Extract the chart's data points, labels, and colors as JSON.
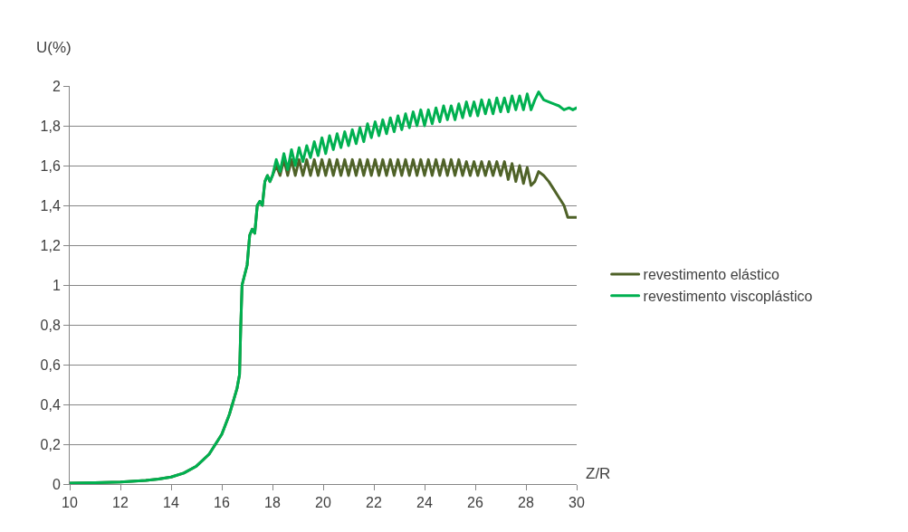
{
  "chart_data": {
    "type": "line",
    "xlabel": "Z/R",
    "ylabel": "U(%)",
    "xlim": [
      10,
      30
    ],
    "xticks": [
      10,
      12,
      14,
      16,
      18,
      20,
      22,
      24,
      26,
      28,
      30
    ],
    "ylim": [
      0,
      2
    ],
    "yticks": [
      0,
      {
        "value": 0.2,
        "label": "0,2"
      },
      {
        "value": 0.4,
        "label": "0,4"
      },
      {
        "value": 0.6,
        "label": "0,6"
      },
      {
        "value": 0.8,
        "label": "0,8"
      },
      1,
      {
        "value": 1.2,
        "label": "1,2"
      },
      {
        "value": 1.4,
        "label": "1,4"
      },
      {
        "value": 1.6,
        "label": "1,6"
      },
      {
        "value": 1.8,
        "label": "1,8"
      },
      2
    ],
    "grid": "y",
    "legend": "right",
    "marker": "none",
    "line_style": "solid",
    "series": [
      {
        "name": "revestimento elástico",
        "color": "#4f6228",
        "x": [
          10,
          11,
          12,
          13,
          13.5,
          14,
          14.5,
          15,
          15.5,
          16,
          16.3,
          16.6,
          16.7,
          16.75,
          16.8,
          17,
          17.1,
          17.2,
          17.3,
          17.4,
          17.5,
          17.6,
          17.7,
          17.8,
          17.9,
          18.0,
          18.15,
          18.3,
          18.45,
          18.6,
          18.75,
          18.9,
          19.05,
          19.2,
          19.35,
          19.5,
          19.65,
          19.8,
          19.95,
          20.1,
          20.25,
          20.4,
          20.55,
          20.7,
          20.85,
          21.0,
          21.15,
          21.3,
          21.45,
          21.6,
          21.75,
          21.9,
          22.05,
          22.2,
          22.35,
          22.5,
          22.65,
          22.8,
          22.95,
          23.1,
          23.25,
          23.4,
          23.55,
          23.7,
          23.85,
          24.0,
          24.15,
          24.3,
          24.45,
          24.6,
          24.75,
          24.9,
          25.05,
          25.2,
          25.35,
          25.5,
          25.65,
          25.8,
          25.95,
          26.1,
          26.25,
          26.4,
          26.55,
          26.7,
          26.85,
          27.0,
          27.15,
          27.3,
          27.45,
          27.6,
          27.75,
          27.9,
          28.05,
          28.2,
          28.35,
          28.5,
          28.7,
          28.9,
          29.1,
          29.3,
          29.5,
          29.65,
          30
        ],
        "values": [
          0.005,
          0.007,
          0.01,
          0.018,
          0.025,
          0.035,
          0.055,
          0.09,
          0.15,
          0.25,
          0.35,
          0.48,
          0.55,
          0.8,
          1.0,
          1.1,
          1.25,
          1.28,
          1.26,
          1.4,
          1.42,
          1.4,
          1.52,
          1.55,
          1.52,
          1.55,
          1.6,
          1.55,
          1.63,
          1.55,
          1.63,
          1.55,
          1.63,
          1.55,
          1.63,
          1.55,
          1.63,
          1.55,
          1.63,
          1.55,
          1.63,
          1.55,
          1.63,
          1.55,
          1.63,
          1.55,
          1.63,
          1.55,
          1.63,
          1.55,
          1.63,
          1.55,
          1.63,
          1.55,
          1.63,
          1.55,
          1.63,
          1.55,
          1.63,
          1.55,
          1.63,
          1.55,
          1.63,
          1.55,
          1.63,
          1.55,
          1.63,
          1.55,
          1.63,
          1.55,
          1.63,
          1.55,
          1.63,
          1.55,
          1.63,
          1.55,
          1.62,
          1.55,
          1.62,
          1.55,
          1.62,
          1.55,
          1.62,
          1.55,
          1.62,
          1.55,
          1.62,
          1.53,
          1.61,
          1.52,
          1.6,
          1.51,
          1.59,
          1.5,
          1.52,
          1.57,
          1.55,
          1.52,
          1.48,
          1.44,
          1.4,
          1.34,
          1.34
        ]
      },
      {
        "name": "revestimento viscoplástico",
        "color": "#00b050",
        "x": [
          10,
          11,
          12,
          13,
          13.5,
          14,
          14.5,
          15,
          15.5,
          16,
          16.3,
          16.6,
          16.7,
          16.75,
          16.8,
          17,
          17.1,
          17.2,
          17.3,
          17.4,
          17.5,
          17.6,
          17.7,
          17.8,
          17.9,
          18.0,
          18.15,
          18.3,
          18.45,
          18.6,
          18.75,
          18.9,
          19.05,
          19.2,
          19.35,
          19.5,
          19.65,
          19.8,
          19.95,
          20.1,
          20.25,
          20.4,
          20.55,
          20.7,
          20.85,
          21.0,
          21.15,
          21.3,
          21.45,
          21.6,
          21.75,
          21.9,
          22.05,
          22.2,
          22.35,
          22.5,
          22.65,
          22.8,
          22.95,
          23.1,
          23.25,
          23.4,
          23.55,
          23.7,
          23.85,
          24.0,
          24.15,
          24.3,
          24.45,
          24.6,
          24.75,
          24.9,
          25.05,
          25.2,
          25.35,
          25.5,
          25.65,
          25.8,
          25.95,
          26.1,
          26.25,
          26.4,
          26.55,
          26.7,
          26.85,
          27.0,
          27.15,
          27.3,
          27.45,
          27.6,
          27.75,
          27.9,
          28.05,
          28.2,
          28.35,
          28.5,
          28.7,
          28.9,
          29.1,
          29.3,
          29.5,
          29.7,
          29.85,
          30
        ],
        "values": [
          0.005,
          0.007,
          0.01,
          0.018,
          0.025,
          0.035,
          0.055,
          0.09,
          0.15,
          0.25,
          0.35,
          0.48,
          0.55,
          0.8,
          1.0,
          1.1,
          1.25,
          1.28,
          1.26,
          1.4,
          1.42,
          1.4,
          1.52,
          1.55,
          1.52,
          1.55,
          1.63,
          1.57,
          1.66,
          1.58,
          1.68,
          1.6,
          1.69,
          1.62,
          1.7,
          1.64,
          1.72,
          1.65,
          1.74,
          1.66,
          1.75,
          1.68,
          1.76,
          1.69,
          1.77,
          1.7,
          1.78,
          1.71,
          1.79,
          1.72,
          1.81,
          1.74,
          1.82,
          1.75,
          1.83,
          1.76,
          1.84,
          1.77,
          1.85,
          1.78,
          1.86,
          1.79,
          1.87,
          1.8,
          1.88,
          1.8,
          1.88,
          1.81,
          1.89,
          1.82,
          1.9,
          1.83,
          1.9,
          1.83,
          1.91,
          1.84,
          1.92,
          1.85,
          1.92,
          1.85,
          1.93,
          1.86,
          1.93,
          1.86,
          1.94,
          1.87,
          1.94,
          1.87,
          1.95,
          1.88,
          1.95,
          1.88,
          1.96,
          1.88,
          1.93,
          1.97,
          1.93,
          1.92,
          1.91,
          1.9,
          1.88,
          1.89,
          1.88,
          1.89
        ]
      }
    ]
  }
}
